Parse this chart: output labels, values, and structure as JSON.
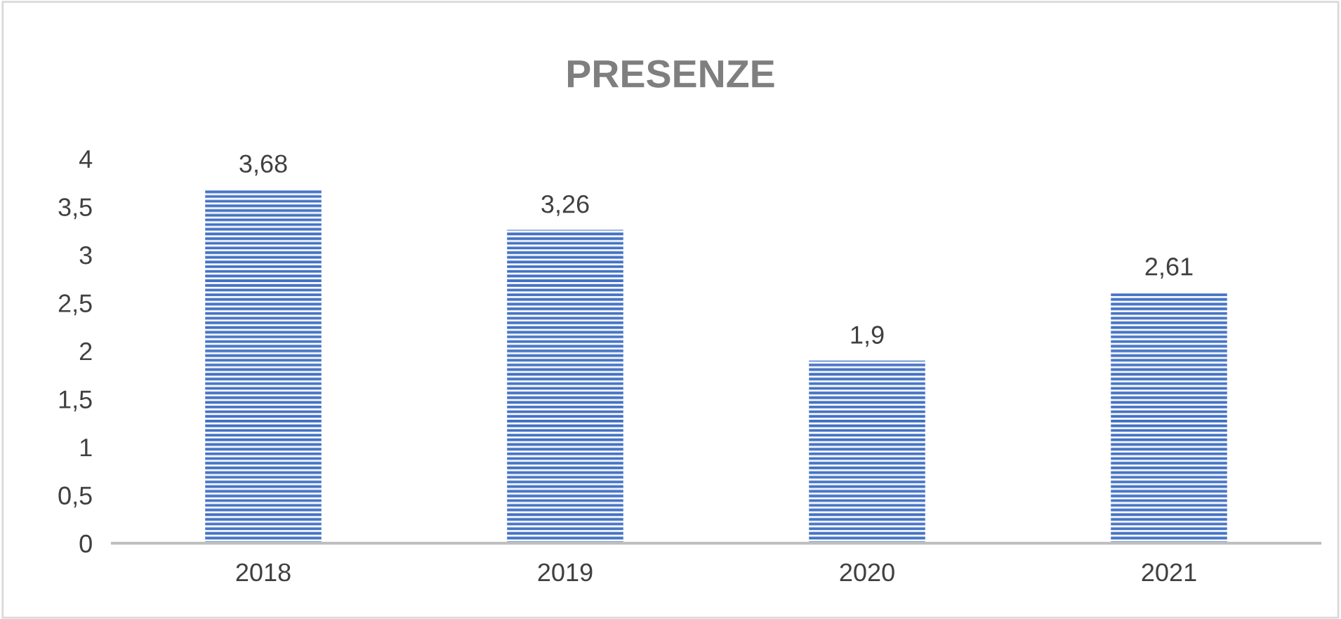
{
  "chart_data": {
    "type": "bar",
    "title": "PRESENZE",
    "categories": [
      "2018",
      "2019",
      "2020",
      "2021"
    ],
    "values": [
      3.68,
      3.26,
      1.9,
      2.61
    ],
    "value_labels": [
      "3,68",
      "3,26",
      "1,9",
      "2,61"
    ],
    "color": "#4472c4",
    "ylim": [
      0,
      4
    ],
    "yticks": [
      0,
      {
        "value": 0.5,
        "label": "0,5"
      },
      1,
      {
        "value": 1.5,
        "label": "1,5"
      },
      2,
      {
        "value": 2.5,
        "label": "2,5"
      },
      3,
      {
        "value": 3.5,
        "label": "3,5"
      },
      4
    ],
    "grid": false
  }
}
